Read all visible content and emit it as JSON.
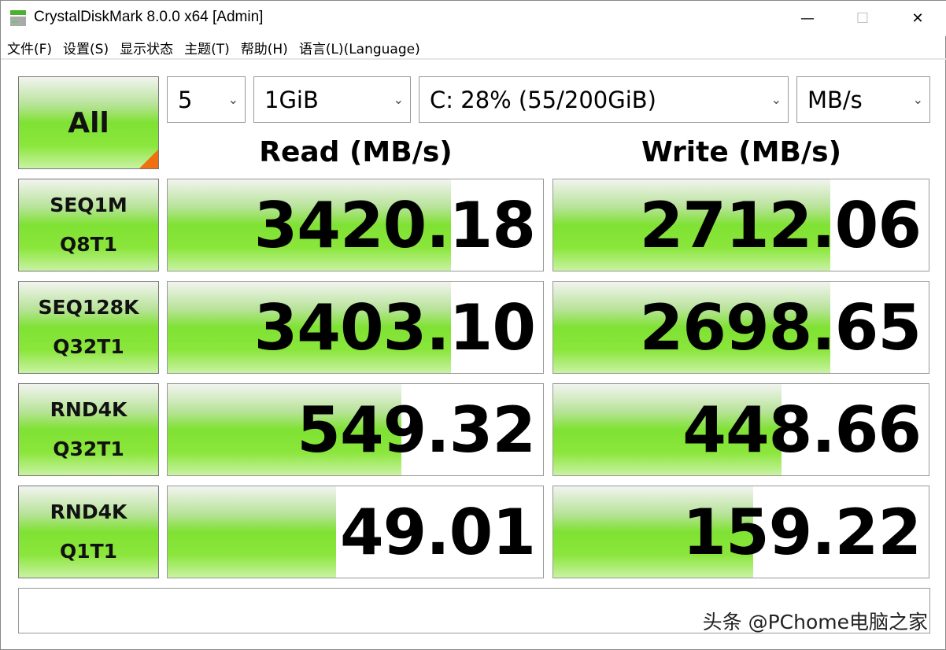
{
  "window": {
    "title": "CrystalDiskMark 8.0.0 x64 [Admin]",
    "minimize": "—",
    "maximize": "☐",
    "close": "✕"
  },
  "menu": [
    "文件(F)",
    "设置(S)",
    "显示状态",
    "主题(T)",
    "帮助(H)",
    "语言(L)(Language)"
  ],
  "controls": {
    "all_label": "All",
    "count": "5",
    "size": "1GiB",
    "drive": "C: 28% (55/200GiB)",
    "unit": "MB/s"
  },
  "headers": {
    "read": "Read (MB/s)",
    "write": "Write (MB/s)"
  },
  "rows": [
    {
      "l1": "SEQ1M",
      "l2": "Q8T1",
      "read": "3420.18",
      "write": "2712.06",
      "read_fill": 0.755,
      "write_fill": 0.738
    },
    {
      "l1": "SEQ128K",
      "l2": "Q32T1",
      "read": "3403.10",
      "write": "2698.65",
      "read_fill": 0.755,
      "write_fill": 0.738
    },
    {
      "l1": "RND4K",
      "l2": "Q32T1",
      "read": "549.32",
      "write": "448.66",
      "read_fill": 0.623,
      "write_fill": 0.609
    },
    {
      "l1": "RND4K",
      "l2": "Q1T1",
      "read": "49.01",
      "write": "159.22",
      "read_fill": 0.448,
      "write_fill": 0.533
    }
  ],
  "comment": "",
  "watermark": "头条 @PChome电脑之家",
  "colors": {
    "accent_green": "#7fe233",
    "corner_orange": "#f07010"
  }
}
